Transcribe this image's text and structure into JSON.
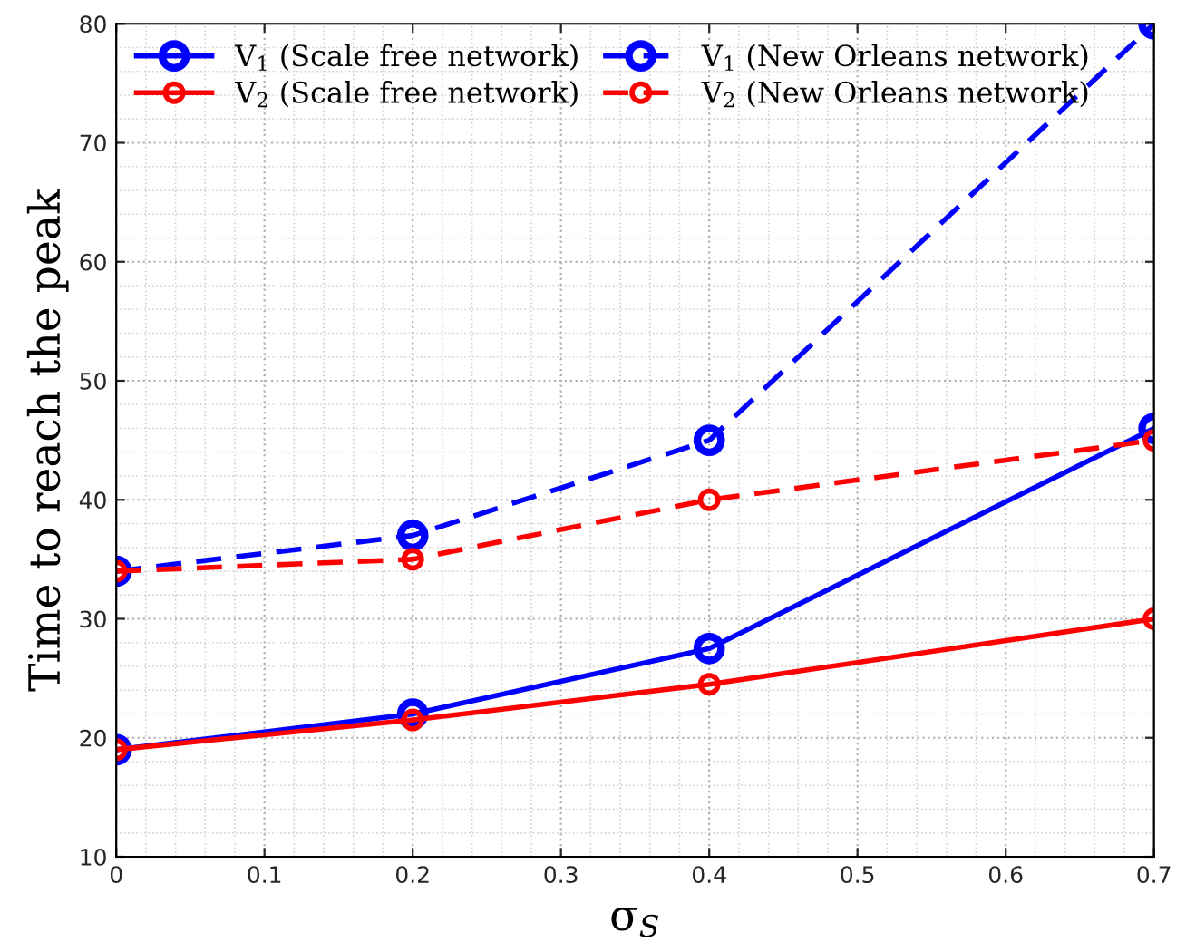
{
  "chart_data": {
    "type": "line",
    "xlabel": "σ$_{S}$",
    "ylabel": "Time to reach the peak",
    "x": [
      0,
      0.2,
      0.4,
      0.7
    ],
    "series": [
      {
        "name": "V$_{1}$ (Scale free network)",
        "color": "#0000ff",
        "line_style": "solid",
        "values": [
          19,
          22,
          27.5,
          46
        ]
      },
      {
        "name": "V$_{2}$ (Scale free network)",
        "color": "#ff0000",
        "line_style": "solid",
        "values": [
          19,
          21.5,
          24.5,
          30
        ]
      },
      {
        "name": "V$_{1}$ (New Orleans network)",
        "color": "#0000ff",
        "line_style": "dashed",
        "values": [
          34,
          37,
          45,
          80
        ]
      },
      {
        "name": "V$_{2}$ (New Orleans network)",
        "color": "#ff0000",
        "line_style": "dashed",
        "values": [
          34,
          35,
          40,
          45
        ]
      }
    ],
    "xlim": [
      0,
      0.7
    ],
    "xticks": [
      0,
      0.1,
      0.2,
      0.3,
      0.4,
      0.5,
      0.6,
      0.7
    ],
    "ylim": [
      10,
      80
    ],
    "yticks": [
      10,
      20,
      30,
      40,
      50,
      60,
      70,
      80
    ],
    "grid": true,
    "legend": "top left",
    "marker": "circle"
  }
}
